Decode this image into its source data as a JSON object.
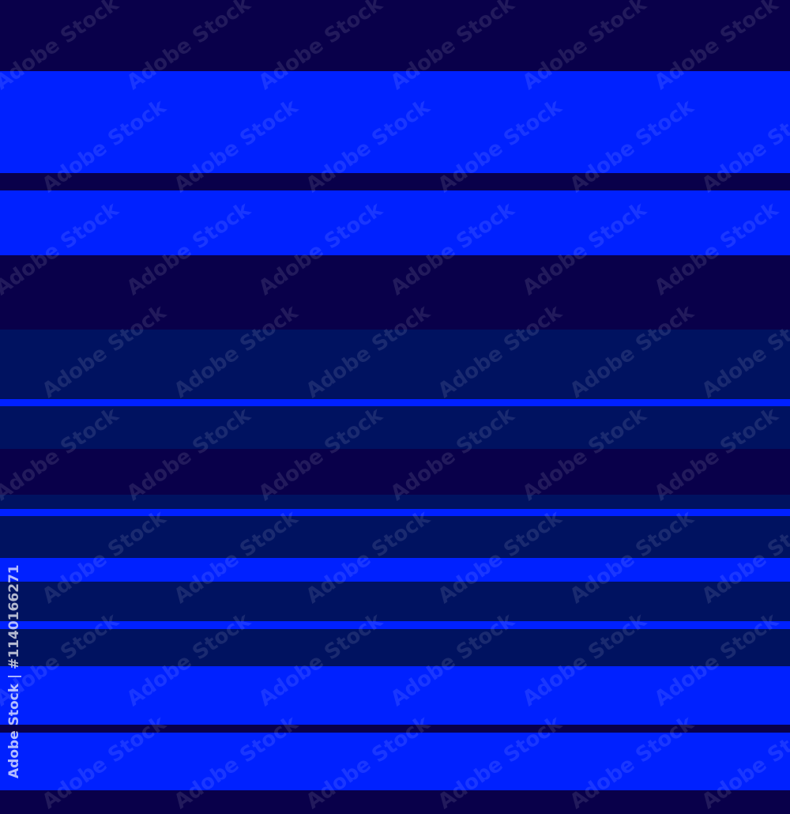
{
  "colors": {
    "dark": "#09004a",
    "bright": "#0021ff",
    "mid": "#001260"
  },
  "stripes": [
    "dark",
    "bright",
    "dark",
    "bright",
    "dark",
    "mid",
    "bright",
    "mid",
    "dark",
    "mid",
    "bright",
    "mid",
    "bright",
    "mid",
    "bright",
    "mid",
    "bright",
    "dark",
    "bright"
  ],
  "watermark": {
    "text": "Adobe Stock",
    "stock_id": "Adobe Stock | #1140166271"
  }
}
